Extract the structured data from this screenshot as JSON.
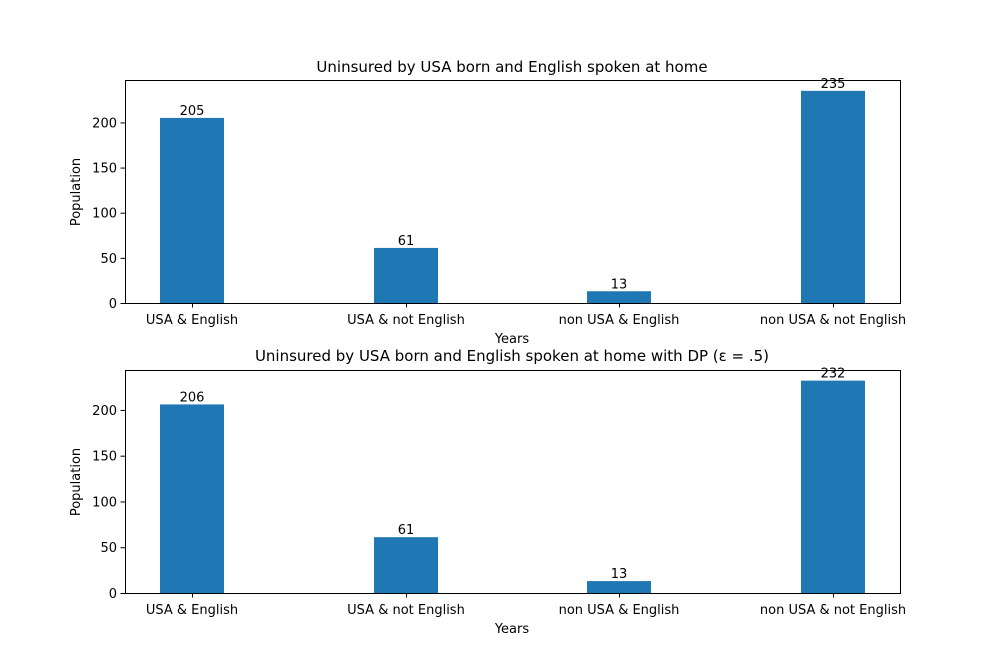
{
  "chart_data": [
    {
      "type": "bar",
      "title": "Uninsured by USA born and English spoken at home",
      "xlabel": "Years",
      "ylabel": "Population",
      "categories": [
        "USA & English",
        "USA & not English",
        "non USA & English",
        "non USA & not English"
      ],
      "values": [
        205,
        61,
        13,
        235
      ],
      "data_labels": [
        "205",
        "61",
        "13",
        "235"
      ],
      "yticks": [
        0,
        50,
        100,
        150,
        200
      ],
      "ylim": [
        0,
        247
      ],
      "color": "#1f77b4",
      "grid": false
    },
    {
      "type": "bar",
      "title": "Uninsured by USA born and English spoken at home with DP (ε = .5)",
      "xlabel": "Years",
      "ylabel": "Population",
      "categories": [
        "USA & English",
        "USA & not English",
        "non USA & English",
        "non USA & not English"
      ],
      "values": [
        206,
        61,
        13,
        232
      ],
      "data_labels": [
        "206",
        "61",
        "13",
        "232"
      ],
      "yticks": [
        0,
        50,
        100,
        150,
        200
      ],
      "ylim": [
        0,
        243.6
      ],
      "color": "#1f77b4",
      "grid": false
    }
  ]
}
